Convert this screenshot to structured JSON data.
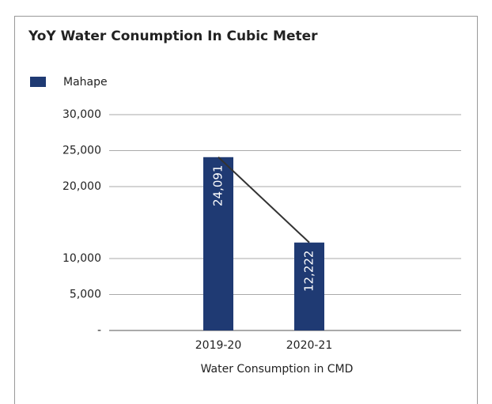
{
  "chart_data": {
    "type": "bar",
    "title": "YoY Water Conumption In Cubic Meter",
    "x_label": "Water Consumption in CMD",
    "categories": [
      "2019-20",
      "2020-21"
    ],
    "series": [
      {
        "name": "Mahape",
        "color": "#1f3a73",
        "values": [
          24091,
          12222
        ],
        "value_labels": [
          "24,091",
          "12,222"
        ]
      }
    ],
    "trendline": true,
    "ylim": [
      0,
      30000
    ],
    "yticks": [
      {
        "value": 0,
        "label": "-"
      },
      {
        "value": 5000,
        "label": "5,000"
      },
      {
        "value": 10000,
        "label": "10,000"
      },
      {
        "value": 20000,
        "label": "20,000"
      },
      {
        "value": 25000,
        "label": "25,000"
      },
      {
        "value": 30000,
        "label": "30,000"
      }
    ],
    "grid": true,
    "legend": "top-left"
  }
}
